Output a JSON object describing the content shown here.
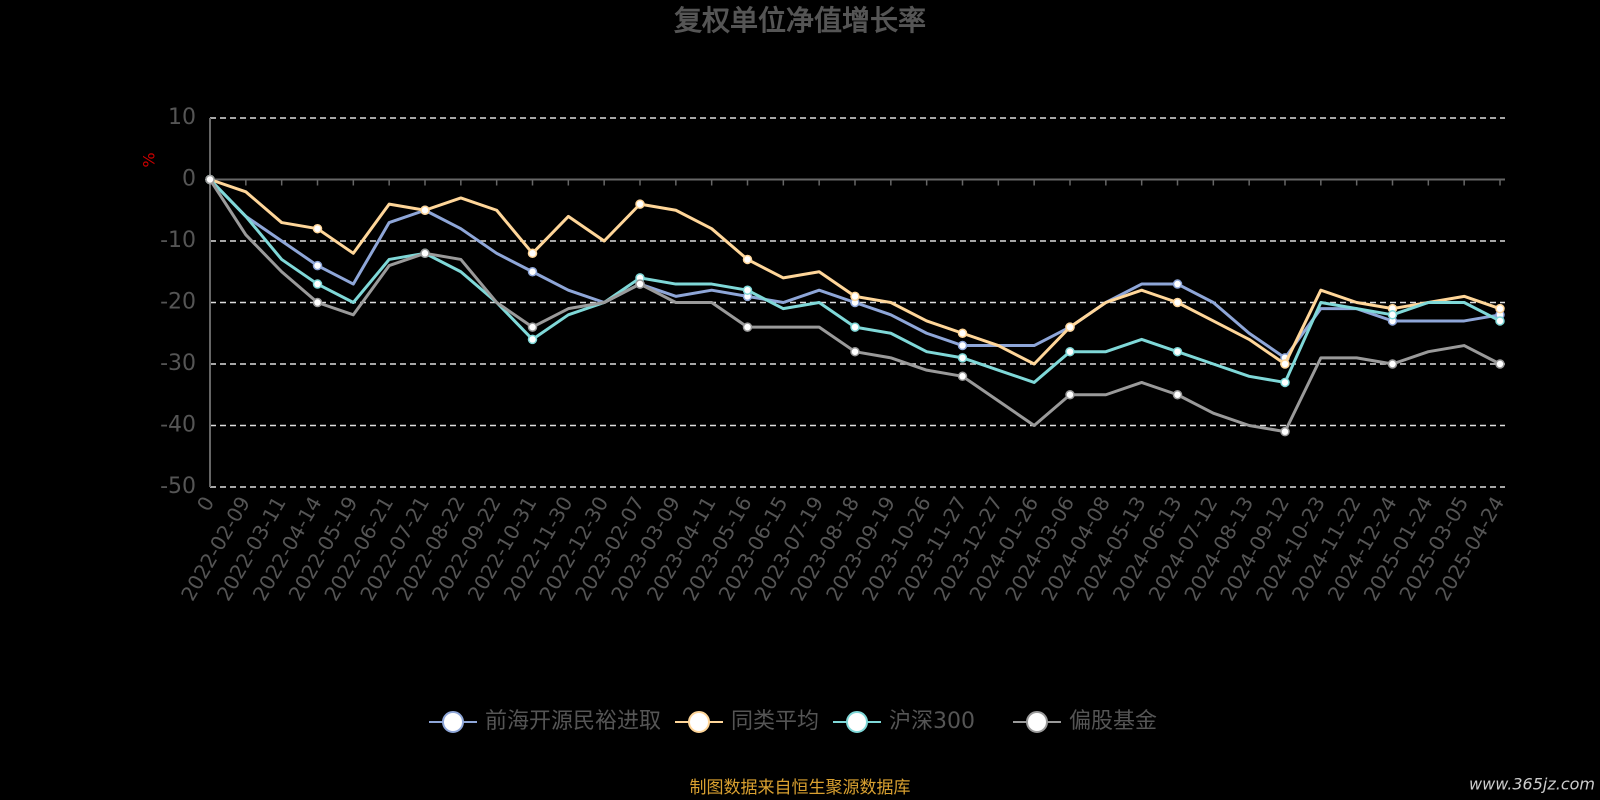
{
  "chart_data": {
    "type": "line",
    "title": "复权单位净值增长率",
    "y_label": "%",
    "source": "制图数据来自恒生聚源数据库",
    "watermark": "www.365jz.com",
    "categories": [
      "0",
      "2022-02-09",
      "2022-03-11",
      "2022-04-14",
      "2022-05-19",
      "2022-06-21",
      "2022-07-21",
      "2022-08-22",
      "2022-09-22",
      "2022-10-31",
      "2022-11-30",
      "2022-12-30",
      "2023-02-07",
      "2023-03-09",
      "2023-04-11",
      "2023-05-16",
      "2023-06-15",
      "2023-07-19",
      "2023-08-18",
      "2023-09-19",
      "2023-10-26",
      "2023-11-27",
      "2023-12-27",
      "2024-01-26",
      "2024-03-06",
      "2024-04-08",
      "2024-05-13",
      "2024-06-13",
      "2024-07-12",
      "2024-08-13",
      "2024-09-12",
      "2024-10-23",
      "2024-11-22",
      "2024-12-24",
      "2025-01-24",
      "2025-03-05",
      "2025-04-24"
    ],
    "series": [
      {
        "name": "前海开源民裕进取",
        "color": "#8ea6d8",
        "values": [
          0,
          -6,
          -10,
          -14,
          -17,
          -7,
          -5,
          -8,
          -12,
          -15,
          -18,
          -20,
          -17,
          -19,
          -18,
          -19,
          -20,
          -18,
          -20,
          -22,
          -25,
          -27,
          -27,
          -27,
          -24,
          -20,
          -17,
          -17,
          -20,
          -25,
          -29,
          -21,
          -21,
          -23,
          -23,
          -23,
          -22
        ]
      },
      {
        "name": "同类平均",
        "color": "#ffd699",
        "values": [
          0,
          -2,
          -7,
          -8,
          -12,
          -4,
          -5,
          -3,
          -5,
          -12,
          -6,
          -10,
          -4,
          -5,
          -8,
          -13,
          -16,
          -15,
          -19,
          -20,
          -23,
          -25,
          -27,
          -30,
          -24,
          -20,
          -18,
          -20,
          -23,
          -26,
          -30,
          -18,
          -20,
          -21,
          -20,
          -19,
          -21
        ]
      },
      {
        "name": "沪深300",
        "color": "#7fd8d8",
        "values": [
          0,
          -6,
          -13,
          -17,
          -20,
          -13,
          -12,
          -15,
          -20,
          -26,
          -22,
          -20,
          -16,
          -17,
          -17,
          -18,
          -21,
          -20,
          -24,
          -25,
          -28,
          -29,
          -31,
          -33,
          -28,
          -28,
          -26,
          -28,
          -30,
          -32,
          -33,
          -20,
          -21,
          -22,
          -20,
          -20,
          -23
        ]
      },
      {
        "name": "偏股基金",
        "color": "#9a9a9a",
        "values": [
          0,
          -9,
          -15,
          -20,
          -22,
          -14,
          -12,
          -13,
          -20,
          -24,
          -21,
          -20,
          -17,
          -20,
          -20,
          -24,
          -24,
          -24,
          -28,
          -29,
          -31,
          -32,
          -36,
          -40,
          -35,
          -35,
          -33,
          -35,
          -38,
          -40,
          -41,
          -29,
          -29,
          -30,
          -28,
          -27,
          -30
        ]
      }
    ],
    "ylim": [
      -50,
      10
    ],
    "yticks": [
      10,
      0,
      -10,
      -20,
      -30,
      -40,
      -50
    ],
    "grid": true
  }
}
